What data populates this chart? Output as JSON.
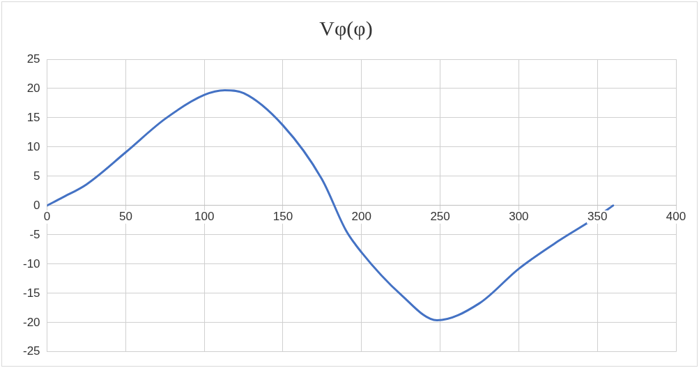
{
  "chart_data": {
    "type": "line",
    "title": "Vφ(φ)",
    "x": [
      0,
      10,
      25,
      50,
      75,
      100,
      113,
      125,
      150,
      175,
      190,
      200,
      225,
      248,
      275,
      300,
      325,
      350,
      360
    ],
    "series": [
      {
        "color": "#4472c4",
        "values": [
          0,
          1.4,
          3.6,
          9.1,
          14.8,
          18.9,
          19.7,
          19.2,
          13.7,
          4.4,
          -4.2,
          -8.0,
          -15.2,
          -19.6,
          -16.7,
          -10.8,
          -6.1,
          -1.9,
          0
        ]
      }
    ],
    "xlim": [
      0,
      400
    ],
    "xticks": [
      0,
      50,
      100,
      150,
      200,
      250,
      300,
      350,
      400
    ],
    "ylim": [
      -25,
      25
    ],
    "yticks": [
      -25,
      -20,
      -15,
      -10,
      -5,
      0,
      5,
      10,
      15,
      20,
      25
    ],
    "grid": true,
    "legend": false,
    "marker": "none",
    "line_style": "solid"
  }
}
